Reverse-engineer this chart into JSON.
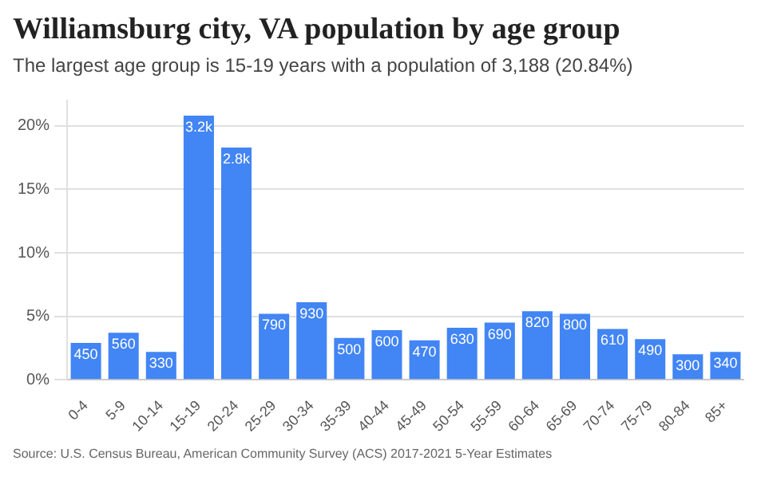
{
  "chart_data": {
    "type": "bar",
    "title": "Williamsburg city, VA population by age group",
    "subtitle": "The largest age group is 15-19 years with a population of 3,188 (20.84%)",
    "categories": [
      "0-4",
      "5-9",
      "10-14",
      "15-19",
      "20-24",
      "25-29",
      "30-34",
      "35-39",
      "40-44",
      "45-49",
      "50-54",
      "55-59",
      "60-64",
      "65-69",
      "70-74",
      "75-79",
      "80-84",
      "85+"
    ],
    "values": [
      2.9,
      3.7,
      2.2,
      20.8,
      18.3,
      5.2,
      6.1,
      3.3,
      3.9,
      3.1,
      4.1,
      4.5,
      5.4,
      5.2,
      4.0,
      3.2,
      2.0,
      2.2
    ],
    "color": "#4285f4",
    "ylim": [
      0,
      22
    ],
    "yticks": [
      {
        "value": 0,
        "label": "0%"
      },
      {
        "value": 5,
        "label": "5%"
      },
      {
        "value": 10,
        "label": "10%"
      },
      {
        "value": 15,
        "label": "15%"
      },
      {
        "value": 20,
        "label": "20%"
      }
    ],
    "grid": "y",
    "legend": false,
    "annotations": [
      "Source: U.S. Census Bureau, American Community Survey (ACS) 2017-2021 5-Year Estimates",
      {
        "text": "450",
        "x": "0-4",
        "y": 2.9
      },
      {
        "text": "560",
        "x": "5-9",
        "y": 3.7
      },
      {
        "text": "330",
        "x": "10-14",
        "y": 2.2
      },
      {
        "text": "3.2k",
        "x": "15-19",
        "y": 20.8
      },
      {
        "text": "2.8k",
        "x": "20-24",
        "y": 18.3
      },
      {
        "text": "790",
        "x": "25-29",
        "y": 5.2
      },
      {
        "text": "930",
        "x": "30-34",
        "y": 6.1
      },
      {
        "text": "500",
        "x": "35-39",
        "y": 3.3
      },
      {
        "text": "600",
        "x": "40-44",
        "y": 3.9
      },
      {
        "text": "470",
        "x": "45-49",
        "y": 3.1
      },
      {
        "text": "630",
        "x": "50-54",
        "y": 4.1
      },
      {
        "text": "690",
        "x": "55-59",
        "y": 4.5
      },
      {
        "text": "820",
        "x": "60-64",
        "y": 5.4
      },
      {
        "text": "800",
        "x": "65-69",
        "y": 5.2
      },
      {
        "text": "610",
        "x": "70-74",
        "y": 4.0
      },
      {
        "text": "490",
        "x": "75-79",
        "y": 3.2
      },
      {
        "text": "300",
        "x": "80-84",
        "y": 2.0
      },
      {
        "text": "340",
        "x": "85+",
        "y": 2.2
      }
    ]
  }
}
